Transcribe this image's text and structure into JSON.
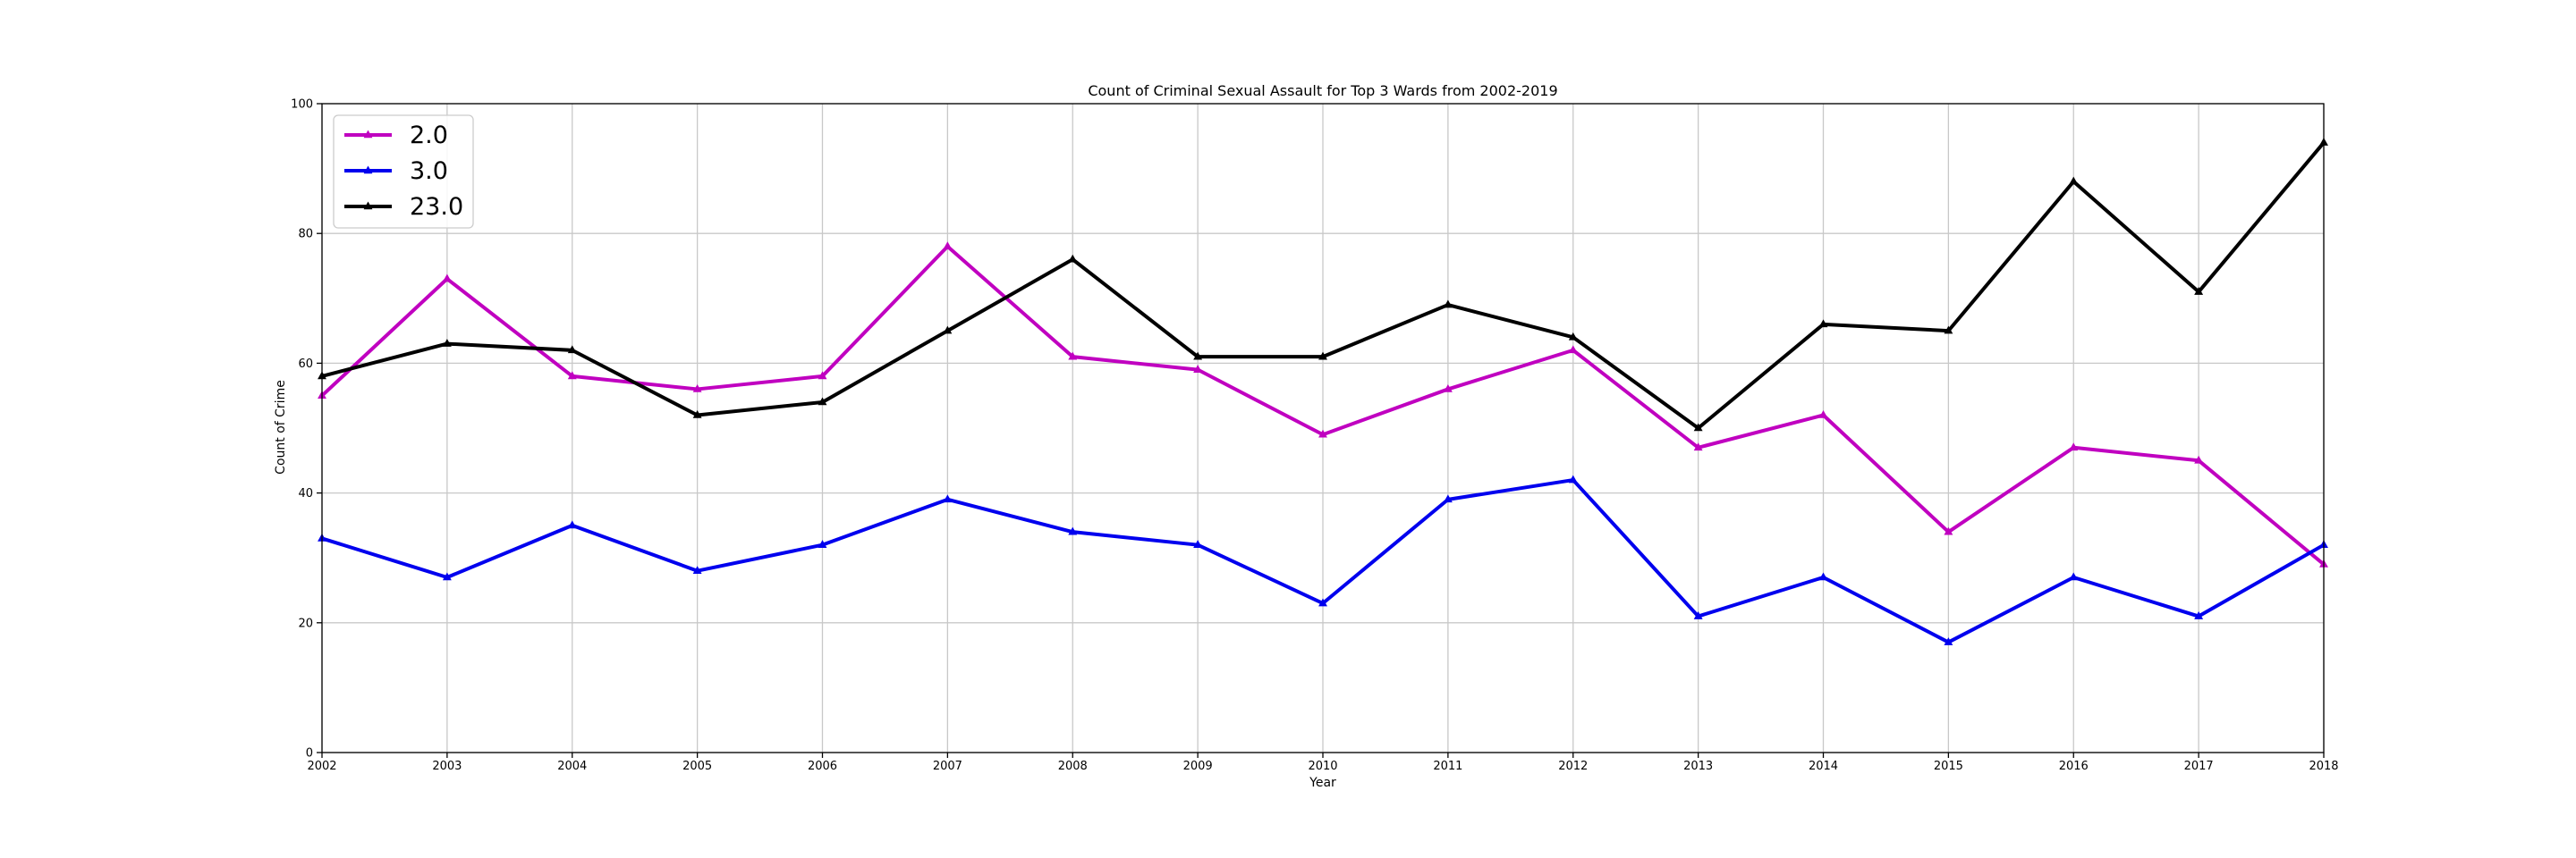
{
  "chart_data": {
    "type": "line",
    "title": "Count of Criminal Sexual Assault for Top 3 Wards from 2002-2019",
    "xlabel": "Year",
    "ylabel": "Count of Crime",
    "x": [
      2002,
      2003,
      2004,
      2005,
      2006,
      2007,
      2008,
      2009,
      2010,
      2011,
      2012,
      2013,
      2014,
      2015,
      2016,
      2017,
      2018
    ],
    "xlim": [
      2002,
      2018
    ],
    "ylim": [
      0,
      100
    ],
    "yticks": [
      0,
      20,
      40,
      60,
      80,
      100
    ],
    "grid": true,
    "legend_position": "top-left",
    "marker": "triangle-up",
    "series": [
      {
        "name": "2.0",
        "color": "#c000c0",
        "values": [
          55,
          73,
          58,
          56,
          58,
          78,
          61,
          59,
          49,
          56,
          62,
          47,
          52,
          34,
          47,
          45,
          29
        ]
      },
      {
        "name": "3.0",
        "color": "#0000ee",
        "values": [
          33,
          27,
          35,
          28,
          32,
          39,
          34,
          32,
          23,
          39,
          42,
          21,
          27,
          17,
          27,
          21,
          32
        ]
      },
      {
        "name": "23.0",
        "color": "#000000",
        "values": [
          58,
          63,
          62,
          52,
          54,
          65,
          76,
          61,
          61,
          69,
          64,
          50,
          66,
          65,
          88,
          71,
          94
        ]
      }
    ]
  }
}
